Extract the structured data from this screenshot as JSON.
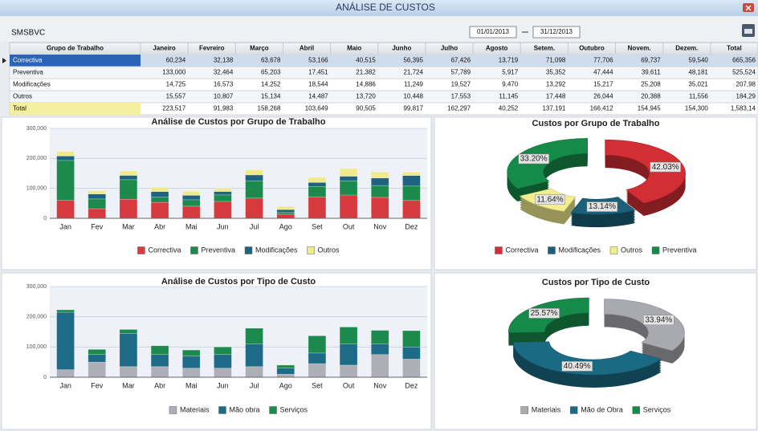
{
  "window": {
    "title": "ANÁLISE DE CUSTOS"
  },
  "toolbar": {
    "entity": "SMSBVC",
    "date_from": "01/01/2013",
    "date_to": "31/12/2013"
  },
  "table": {
    "header": [
      "Grupo de Trabalho",
      "Janeiro",
      "Fevreiro",
      "Março",
      "Abril",
      "Maio",
      "Junho",
      "Julho",
      "Agosto",
      "Setem.",
      "Outubro",
      "Novem.",
      "Dezem.",
      "Total"
    ],
    "rows": [
      [
        "Correctiva",
        "60,234",
        "32,138",
        "63,678",
        "53,166",
        "40,515",
        "56,395",
        "67,426",
        "13,719",
        "71,098",
        "77,706",
        "69,737",
        "59,540",
        "665,356"
      ],
      [
        "Preventiva",
        "133,000",
        "32,464",
        "65,203",
        "17,451",
        "21,382",
        "21,724",
        "57,789",
        "5,917",
        "35,352",
        "47,444",
        "39,611",
        "48,181",
        "525,524"
      ],
      [
        "Modificações",
        "14,725",
        "16,573",
        "14,252",
        "18,544",
        "14,886",
        "11,249",
        "19,527",
        "9,470",
        "13,292",
        "15,217",
        "25,208",
        "35,021",
        "207,98"
      ],
      [
        "Outros",
        "15,557",
        "10,807",
        "15,134",
        "14,487",
        "13,720",
        "10,448",
        "17,553",
        "11,145",
        "17,448",
        "26,044",
        "20,388",
        "11,556",
        "184,29"
      ],
      [
        "Total",
        "223,517",
        "91,983",
        "158,268",
        "103,649",
        "90,505",
        "99,817",
        "162,297",
        "40,252",
        "137,191",
        "166,412",
        "154,945",
        "154,300",
        "1,583,14"
      ]
    ]
  },
  "chart_data": [
    {
      "type": "bar",
      "stacked": true,
      "title": "Análise de Custos por Grupo de Trabalho",
      "categories": [
        "Jan",
        "Fev",
        "Mar",
        "Abr",
        "Mai",
        "Jun",
        "Jul",
        "Ago",
        "Set",
        "Out",
        "Nov",
        "Dez"
      ],
      "series": [
        {
          "name": "Correctiva",
          "color": "#d63a3f",
          "values": [
            60234,
            32138,
            63678,
            53166,
            40515,
            56395,
            67426,
            13719,
            71098,
            77706,
            69737,
            59540
          ]
        },
        {
          "name": "Preventiva",
          "color": "#1c8a4c",
          "values": [
            133000,
            32464,
            65203,
            17451,
            21382,
            21724,
            57789,
            5917,
            35352,
            47444,
            39611,
            48181
          ]
        },
        {
          "name": "Modificações",
          "color": "#1e6482",
          "values": [
            14725,
            16573,
            14252,
            18544,
            14886,
            11249,
            19527,
            9470,
            13292,
            15217,
            25208,
            35021
          ]
        },
        {
          "name": "Outros",
          "color": "#efeb8c",
          "values": [
            15557,
            10807,
            15134,
            14487,
            13720,
            10448,
            17553,
            11145,
            17448,
            26044,
            20388,
            11556
          ]
        }
      ],
      "ylim": [
        0,
        300000
      ],
      "yticks": [
        0,
        {
          "value": 100000,
          "label": "100,000"
        },
        {
          "value": 200000,
          "label": "200,000"
        },
        {
          "value": 300000,
          "label": "300,000"
        }
      ],
      "grid": true,
      "legend": "bottom"
    },
    {
      "type": "pie",
      "donut": true,
      "title": "Custos por Grupo de Trabalho",
      "categories": [
        "Correctiva",
        "Modificações",
        "Outros",
        "Preventiva"
      ],
      "values": [
        42.03,
        13.14,
        11.64,
        33.2
      ],
      "value_labels": [
        "42.03%",
        "13.14%",
        "11.64%",
        "33.20%"
      ],
      "colors": [
        "#d42e35",
        "#1b5f78",
        "#f2ee8e",
        "#168a48"
      ],
      "legend": "bottom"
    },
    {
      "type": "bar",
      "stacked": true,
      "title": "Análise de Custos por Tipo de Custo",
      "categories": [
        "Jan",
        "Fev",
        "Mar",
        "Abr",
        "Mai",
        "Jun",
        "Jul",
        "Ago",
        "Set",
        "Out",
        "Nov",
        "Dez"
      ],
      "series": [
        {
          "name": "Materiais",
          "color": "#aeaeb6",
          "values": [
            25000,
            50000,
            35000,
            35000,
            30000,
            30000,
            35000,
            10000,
            45000,
            40000,
            75000,
            60000
          ]
        },
        {
          "name": "Mão obra",
          "color": "#1e6b88",
          "values": [
            190000,
            25000,
            110000,
            40000,
            40000,
            45000,
            75000,
            20000,
            35000,
            70000,
            35000,
            40000
          ]
        },
        {
          "name": "Serviços",
          "color": "#1c8a4c",
          "values": [
            8000,
            17000,
            13000,
            29000,
            20000,
            25000,
            52000,
            10000,
            57000,
            56000,
            45000,
            54000
          ]
        }
      ],
      "ylim": [
        0,
        300000
      ],
      "yticks": [
        0,
        {
          "value": 100000,
          "label": "100,000"
        },
        {
          "value": 200000,
          "label": "200,000"
        },
        {
          "value": 300000,
          "label": "300,000"
        }
      ],
      "grid": true,
      "legend": "bottom"
    },
    {
      "type": "pie",
      "donut": true,
      "title": "Custos por Tipo de Custo",
      "categories": [
        "Materiais",
        "Mão de Obra",
        "Serviços"
      ],
      "values": [
        33.94,
        40.49,
        25.57
      ],
      "value_labels": [
        "33.94%",
        "40.49%",
        "25.57%"
      ],
      "colors": [
        "#a9a9b0",
        "#1b6a84",
        "#168a48"
      ],
      "legend": "bottom"
    }
  ]
}
